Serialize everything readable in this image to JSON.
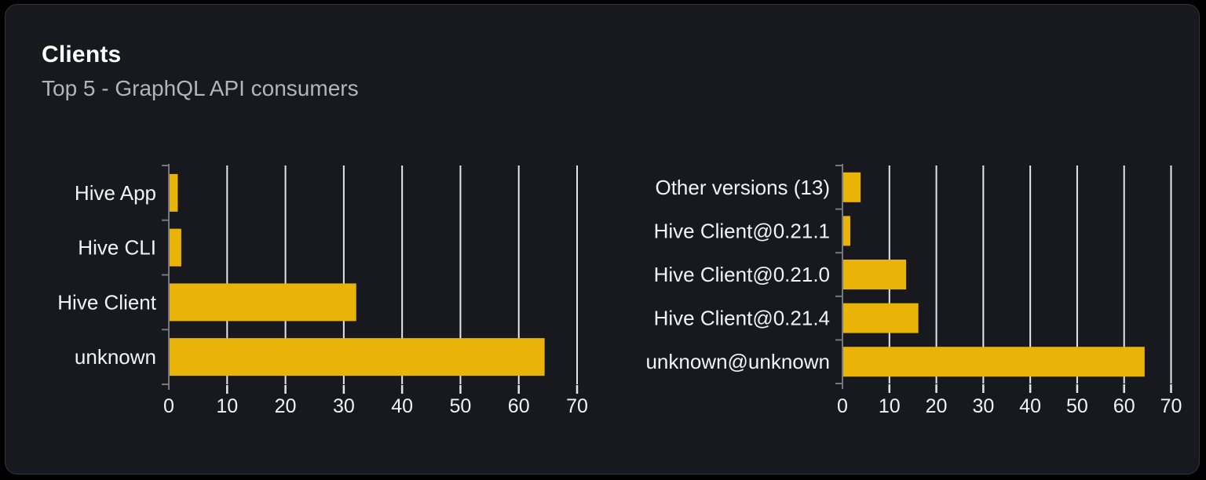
{
  "card": {
    "title": "Clients",
    "subtitle": "Top 5 - GraphQL API consumers"
  },
  "colors": {
    "page_bg": "#000000",
    "card_bg": "#17191e",
    "card_border": "#30343b",
    "title": "#ffffff",
    "subtitle": "#b0b5bf",
    "bar": "#eab308",
    "gridline": "#e3e6ef",
    "axis_line": "#75787f",
    "x_tick": "#e3e6ef",
    "axis_label": "#f2f3f5"
  },
  "chart_data": [
    {
      "type": "bar",
      "orientation": "horizontal",
      "name": "clients",
      "categories": [
        "Hive App",
        "Hive CLI",
        "Hive Client",
        "unknown"
      ],
      "values": [
        1.4,
        2,
        32,
        64.3
      ],
      "xlim": [
        0,
        70
      ],
      "xticks": [
        0,
        10,
        20,
        30,
        40,
        50,
        60,
        70
      ],
      "grid": true,
      "legend": false,
      "bar_color": "#eab308"
    },
    {
      "type": "bar",
      "orientation": "horizontal",
      "name": "client-versions",
      "categories": [
        "Other versions (13)",
        "Hive Client@0.21.1",
        "Hive Client@0.21.0",
        "Hive Client@0.21.4",
        "unknown@unknown"
      ],
      "values": [
        3.7,
        1.5,
        13.4,
        16,
        64.2
      ],
      "xlim": [
        0,
        70
      ],
      "xticks": [
        0,
        10,
        20,
        30,
        40,
        50,
        60,
        70
      ],
      "grid": true,
      "legend": false,
      "bar_color": "#eab308"
    }
  ]
}
